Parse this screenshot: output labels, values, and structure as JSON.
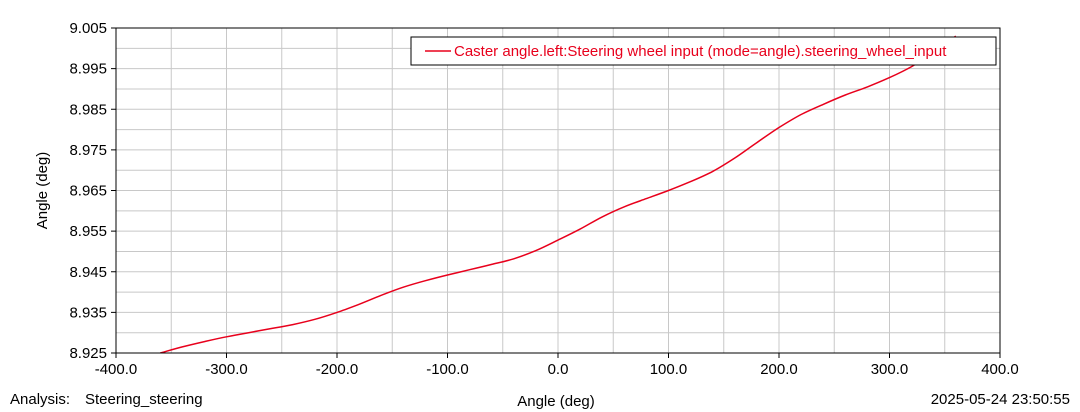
{
  "colors": {
    "series": "#e8001c",
    "grid": "#c8c8c8",
    "frame": "#000000",
    "background": "#ffffff"
  },
  "footer": {
    "analysis_label": "Analysis:",
    "analysis_value": "Steering_steering",
    "timestamp": "2025-05-24 23:50:55"
  },
  "chart_data": {
    "type": "line",
    "title": "",
    "xlabel": "Angle (deg)",
    "ylabel": "Angle (deg)",
    "xlim": [
      -400.0,
      400.0
    ],
    "ylim": [
      8.925,
      9.005
    ],
    "x_ticks": [
      -400.0,
      -300.0,
      -200.0,
      -100.0,
      0.0,
      100.0,
      200.0,
      300.0,
      400.0
    ],
    "x_tick_labels": [
      "-400.0",
      "-300.0",
      "-200.0",
      "-100.0",
      "0.0",
      "100.0",
      "200.0",
      "300.0",
      "400.0"
    ],
    "y_ticks": [
      8.925,
      8.935,
      8.945,
      8.955,
      8.965,
      8.975,
      8.985,
      8.995,
      9.005
    ],
    "y_tick_labels": [
      "8.925",
      "8.935",
      "8.945",
      "8.955",
      "8.965",
      "8.975",
      "8.985",
      "8.995",
      "9.005"
    ],
    "x_minor_step": 50,
    "y_minor_step": 0.005,
    "grid": true,
    "legend_position": "top-right",
    "series": [
      {
        "name": "Caster angle.left:Steering wheel input (mode=angle).steering_wheel_input",
        "x": [
          -360,
          -340,
          -320,
          -300,
          -280,
          -260,
          -240,
          -220,
          -200,
          -180,
          -160,
          -140,
          -120,
          -100,
          -80,
          -60,
          -40,
          -20,
          0,
          20,
          40,
          60,
          80,
          100,
          120,
          140,
          160,
          180,
          200,
          220,
          240,
          260,
          280,
          300,
          320,
          340,
          360
        ],
        "y": [
          8.925,
          8.9265,
          8.9278,
          8.929,
          8.93,
          8.931,
          8.932,
          8.9333,
          8.935,
          8.937,
          8.9392,
          8.9412,
          8.9428,
          8.9442,
          8.9455,
          8.9468,
          8.9482,
          8.9502,
          8.9528,
          8.9555,
          8.9585,
          8.961,
          8.963,
          8.965,
          8.9672,
          8.9697,
          8.973,
          8.9768,
          8.9805,
          8.9837,
          8.9862,
          8.9885,
          8.9905,
          8.9928,
          8.9955,
          8.999,
          9.003
        ]
      }
    ]
  }
}
